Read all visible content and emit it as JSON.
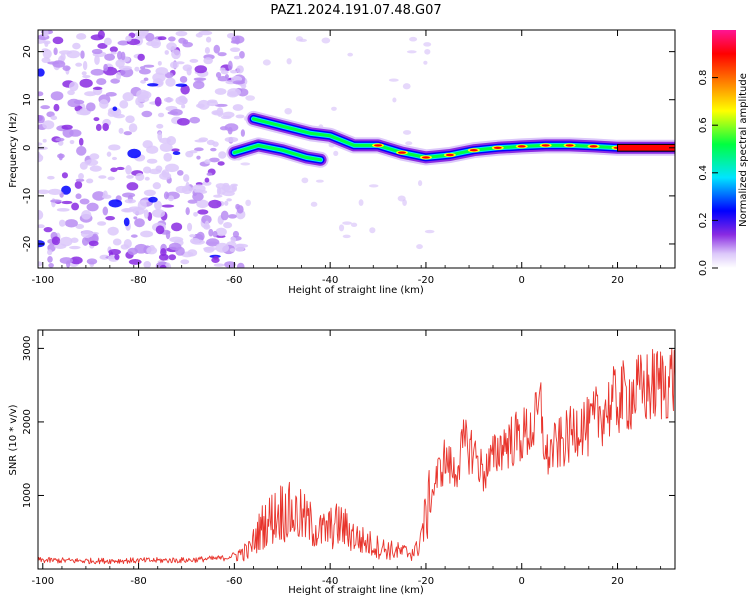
{
  "title": "PAZ1.2024.191.07.48.G07",
  "chart_data": [
    {
      "type": "heatmap",
      "xlabel": "Height of straight line (km)",
      "ylabel": "Frequency (Hz)",
      "xlim": [
        -101,
        32
      ],
      "ylim": [
        -25,
        24.5
      ],
      "xticks": [
        -100,
        -80,
        -60,
        -40,
        -20,
        0,
        20
      ],
      "yticks": [
        -20,
        -10,
        0,
        10,
        20
      ],
      "colorbar": {
        "label": "Normalized spectral amplitude",
        "range": [
          0,
          1
        ],
        "ticks": [
          "0.0",
          "0.2",
          "0.4",
          "0.6",
          "0.8"
        ],
        "colors": [
          "#ffffff",
          "#dcc8fa",
          "#8a2be2",
          "#0000ff",
          "#00e5ff",
          "#00ff40",
          "#ffff00",
          "#ff8000",
          "#ff0000",
          "#ff1493"
        ]
      },
      "ridge": [
        {
          "x": -56,
          "f": 6.0
        },
        {
          "x": -50,
          "f": 4.5
        },
        {
          "x": -44,
          "f": 3.0
        },
        {
          "x": -40,
          "f": 2.5
        },
        {
          "x": -35,
          "f": 0.5
        },
        {
          "x": -30,
          "f": 0.5
        },
        {
          "x": -25,
          "f": -1.0
        },
        {
          "x": -20,
          "f": -2.0
        },
        {
          "x": -15,
          "f": -1.5
        },
        {
          "x": -10,
          "f": -0.5
        },
        {
          "x": -5,
          "f": 0.0
        },
        {
          "x": 0,
          "f": 0.3
        },
        {
          "x": 5,
          "f": 0.5
        },
        {
          "x": 10,
          "f": 0.5
        },
        {
          "x": 15,
          "f": 0.3
        },
        {
          "x": 20,
          "f": 0.0
        },
        {
          "x": 25,
          "f": 0.0
        },
        {
          "x": 32,
          "f": 0.0
        }
      ],
      "branch": [
        {
          "x": -60,
          "f": -1.0
        },
        {
          "x": -55,
          "f": 0.5
        },
        {
          "x": -50,
          "f": -0.5
        },
        {
          "x": -45,
          "f": -2.0
        },
        {
          "x": -42,
          "f": -2.5
        }
      ],
      "noise_region_x": [
        -101,
        -58
      ]
    },
    {
      "type": "line",
      "xlabel": "Height of straight line (km)",
      "ylabel": "SNR (10 * v/v)",
      "xlim": [
        -101,
        32
      ],
      "ylim": [
        0,
        3250
      ],
      "xticks": [
        -100,
        -80,
        -60,
        -40,
        -20,
        0,
        20
      ],
      "yticks": [
        1000,
        2000,
        3000
      ],
      "color": "#e8342c",
      "series": [
        {
          "x": [
            -101,
            -90,
            -80,
            -70,
            -62,
            -57,
            -54,
            -50,
            -46,
            -42,
            -38,
            -34,
            -30,
            -27,
            -24,
            -22,
            -20,
            -18,
            -16,
            -14,
            -12,
            -10,
            -8,
            -6,
            -4,
            -2,
            0,
            2,
            3,
            4,
            5,
            6,
            8,
            10,
            12,
            14,
            16,
            18,
            20,
            22,
            24,
            26,
            28,
            30,
            32
          ],
          "values": [
            120,
            110,
            115,
            120,
            150,
            250,
            600,
            800,
            700,
            500,
            600,
            400,
            300,
            250,
            220,
            250,
            700,
            1200,
            1500,
            1300,
            1700,
            1600,
            1300,
            1500,
            1700,
            1750,
            1800,
            1900,
            2000,
            2200,
            1500,
            1600,
            1700,
            1800,
            2000,
            1900,
            2100,
            2200,
            2300,
            2350,
            2400,
            2450,
            2500,
            2550,
            2600
          ]
        }
      ]
    }
  ]
}
